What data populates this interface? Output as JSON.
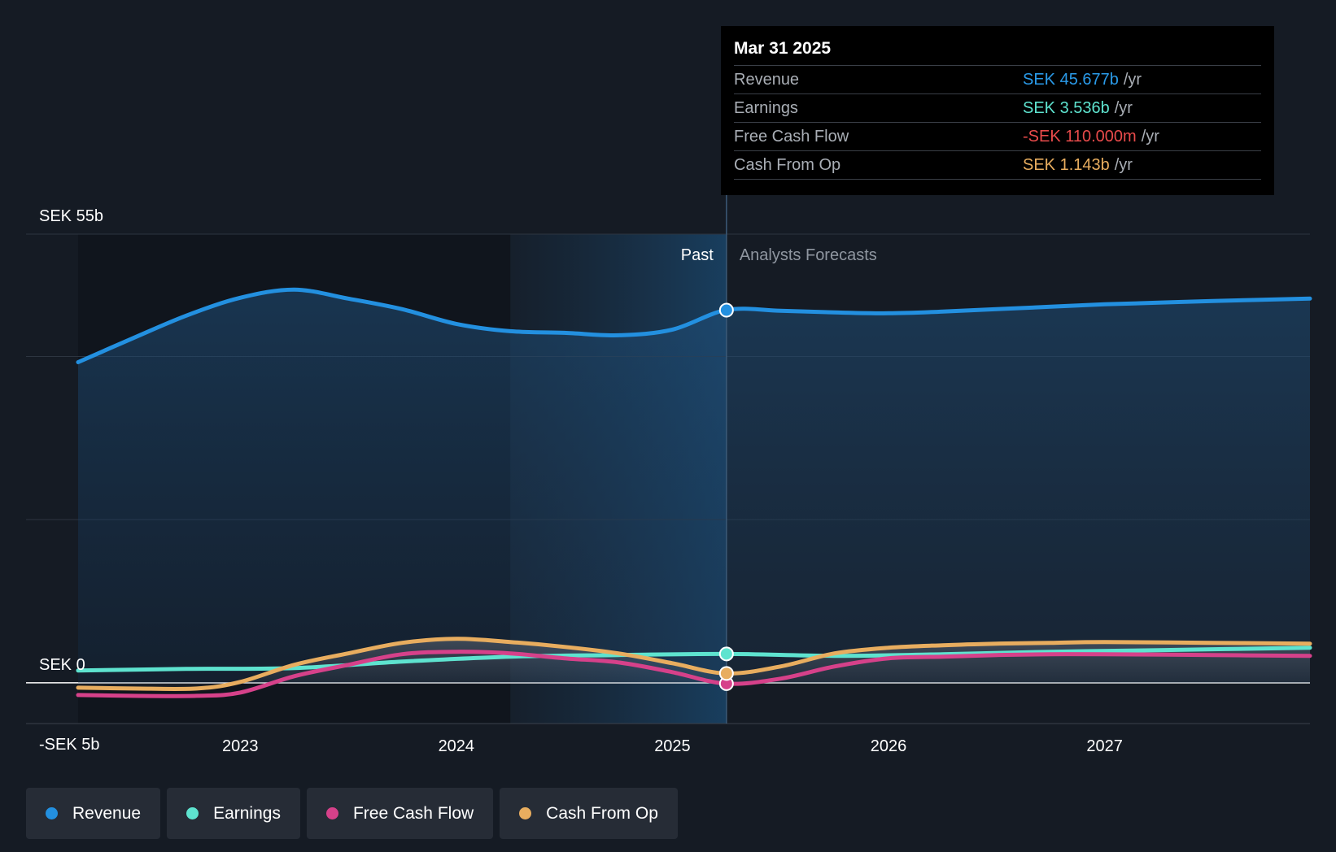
{
  "chart_data": {
    "type": "line",
    "title": "",
    "xlabel": "",
    "ylabel": "",
    "y_unit": "SEK b",
    "ylim": [
      -5,
      55
    ],
    "y_ticks": [
      {
        "value": 55,
        "label": "SEK 55b"
      },
      {
        "value": 0,
        "label": "SEK 0"
      },
      {
        "value": -5,
        "label": "-SEK 5b"
      }
    ],
    "x_range": [
      2022.25,
      2027.95
    ],
    "x_ticks": [
      {
        "value": 2023,
        "label": "2023"
      },
      {
        "value": 2024,
        "label": "2024"
      },
      {
        "value": 2025,
        "label": "2025"
      },
      {
        "value": 2026,
        "label": "2026"
      },
      {
        "value": 2027,
        "label": "2027"
      }
    ],
    "grid": true,
    "legend_position": "bottom-left",
    "past_start": 2024.25,
    "divider_x": 2025.25,
    "segments": {
      "past": "Past",
      "forecast": "Analysts Forecasts"
    },
    "series": [
      {
        "name": "Revenue",
        "color": "#2390e0",
        "area": true,
        "points": [
          [
            2022.25,
            39.3
          ],
          [
            2022.5,
            42.2
          ],
          [
            2022.75,
            45.0
          ],
          [
            2023.0,
            47.2
          ],
          [
            2023.25,
            48.2
          ],
          [
            2023.5,
            47.1
          ],
          [
            2023.75,
            45.8
          ],
          [
            2024.0,
            44.0
          ],
          [
            2024.25,
            43.1
          ],
          [
            2024.5,
            42.9
          ],
          [
            2024.75,
            42.6
          ],
          [
            2025.0,
            43.3
          ],
          [
            2025.25,
            45.7
          ],
          [
            2025.5,
            45.6
          ],
          [
            2025.75,
            45.4
          ],
          [
            2026.0,
            45.3
          ],
          [
            2026.25,
            45.5
          ],
          [
            2026.5,
            45.8
          ],
          [
            2026.75,
            46.1
          ],
          [
            2027.0,
            46.4
          ],
          [
            2027.25,
            46.6
          ],
          [
            2027.5,
            46.8
          ],
          [
            2027.95,
            47.1
          ]
        ]
      },
      {
        "name": "Earnings",
        "color": "#5ee3cf",
        "area": false,
        "points": [
          [
            2022.25,
            1.5
          ],
          [
            2022.75,
            1.7
          ],
          [
            2023.25,
            1.8
          ],
          [
            2023.75,
            2.6
          ],
          [
            2024.25,
            3.2
          ],
          [
            2024.75,
            3.4
          ],
          [
            2025.25,
            3.536
          ],
          [
            2025.75,
            3.3
          ],
          [
            2026.25,
            3.5
          ],
          [
            2026.75,
            3.8
          ],
          [
            2027.25,
            4.0
          ],
          [
            2027.95,
            4.3
          ]
        ]
      },
      {
        "name": "Free Cash Flow",
        "color": "#d6418a",
        "area": false,
        "points": [
          [
            2022.25,
            -1.5
          ],
          [
            2022.5,
            -1.6
          ],
          [
            2022.8,
            -1.6
          ],
          [
            2023.0,
            -1.2
          ],
          [
            2023.25,
            0.8
          ],
          [
            2023.5,
            2.2
          ],
          [
            2023.75,
            3.5
          ],
          [
            2024.0,
            3.8
          ],
          [
            2024.25,
            3.6
          ],
          [
            2024.5,
            3.0
          ],
          [
            2024.75,
            2.5
          ],
          [
            2025.0,
            1.3
          ],
          [
            2025.25,
            -0.11
          ],
          [
            2025.5,
            0.5
          ],
          [
            2025.75,
            2.0
          ],
          [
            2026.0,
            3.0
          ],
          [
            2026.25,
            3.2
          ],
          [
            2026.5,
            3.4
          ],
          [
            2026.75,
            3.5
          ],
          [
            2027.0,
            3.5
          ],
          [
            2027.5,
            3.4
          ],
          [
            2027.95,
            3.3
          ]
        ]
      },
      {
        "name": "Cash From Op",
        "color": "#e8ad5f",
        "area": false,
        "points": [
          [
            2022.25,
            -0.6
          ],
          [
            2022.5,
            -0.7
          ],
          [
            2022.8,
            -0.7
          ],
          [
            2023.0,
            0.1
          ],
          [
            2023.25,
            2.2
          ],
          [
            2023.5,
            3.6
          ],
          [
            2023.75,
            4.9
          ],
          [
            2024.0,
            5.4
          ],
          [
            2024.25,
            5.0
          ],
          [
            2024.5,
            4.4
          ],
          [
            2024.75,
            3.6
          ],
          [
            2025.0,
            2.4
          ],
          [
            2025.25,
            1.143
          ],
          [
            2025.5,
            2.0
          ],
          [
            2025.75,
            3.6
          ],
          [
            2026.0,
            4.3
          ],
          [
            2026.25,
            4.6
          ],
          [
            2026.5,
            4.8
          ],
          [
            2026.75,
            4.9
          ],
          [
            2027.0,
            5.0
          ],
          [
            2027.5,
            4.9
          ],
          [
            2027.95,
            4.8
          ]
        ]
      }
    ],
    "highlight": {
      "x": 2025.25,
      "values": {
        "Revenue": 45.677,
        "Earnings": 3.536,
        "Free Cash Flow": -0.11,
        "Cash From Op": 1.143
      }
    }
  },
  "tooltip": {
    "date": "Mar 31 2025",
    "rows": [
      {
        "label": "Revenue",
        "value": "SEK 45.677b",
        "unit": "/yr",
        "color": "#2a9ae8"
      },
      {
        "label": "Earnings",
        "value": "SEK 3.536b",
        "unit": "/yr",
        "color": "#5ee3cf"
      },
      {
        "label": "Free Cash Flow",
        "value": "-SEK 110.000m",
        "unit": "/yr",
        "color": "#e84b4b"
      },
      {
        "label": "Cash From Op",
        "value": "SEK 1.143b",
        "unit": "/yr",
        "color": "#e8ad5f"
      }
    ]
  },
  "legend": [
    {
      "label": "Revenue",
      "color": "#2390e0"
    },
    {
      "label": "Earnings",
      "color": "#5ee3cf"
    },
    {
      "label": "Free Cash Flow",
      "color": "#d6418a"
    },
    {
      "label": "Cash From Op",
      "color": "#e8ad5f"
    }
  ]
}
